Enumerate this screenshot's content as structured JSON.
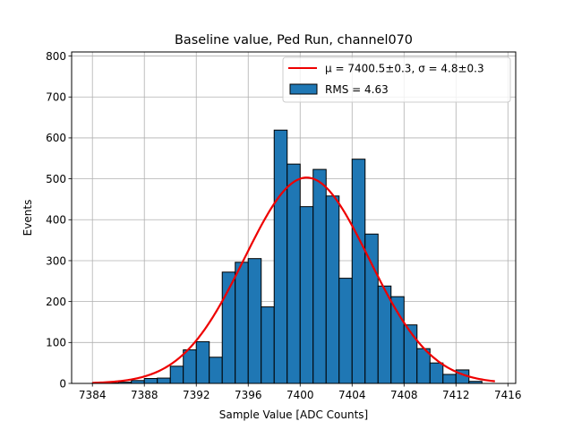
{
  "chart_data": {
    "type": "bar",
    "title": "Baseline value, Ped Run, channel070",
    "xlabel": "Sample Value [ADC Counts]",
    "ylabel": "Events",
    "xlim": [
      7382.4,
      7416.6
    ],
    "ylim": [
      0,
      810
    ],
    "grid": true,
    "legend_position": "top-right",
    "x_ticks": [
      7384,
      7388,
      7392,
      7396,
      7400,
      7404,
      7408,
      7412,
      7416
    ],
    "y_ticks": [
      0,
      100,
      200,
      300,
      400,
      500,
      600,
      700,
      800
    ],
    "bin_width": 1,
    "bin_start": 7384,
    "bin_values": [
      1,
      1,
      3,
      7,
      12,
      13,
      42,
      82,
      102,
      64,
      272,
      296,
      305,
      187,
      619,
      536,
      432,
      523,
      458,
      257,
      548,
      365,
      238,
      212,
      143,
      85,
      50,
      22,
      33,
      5
    ],
    "histogram_label": "RMS = 4.63",
    "fit": {
      "type": "gaussian",
      "mu": 7400.5,
      "sigma": 4.8,
      "amplitude": 503,
      "x_range": [
        7384,
        7415
      ],
      "label_mu": "μ = 7400.5±0.3",
      "label_sep": ", ",
      "label_sigma": "σ = 4.8±0.3"
    },
    "colors": {
      "bars": "#1f77b4",
      "bar_edge": "#000000",
      "fit": "#ee0000",
      "grid": "#b0b0b0"
    }
  }
}
